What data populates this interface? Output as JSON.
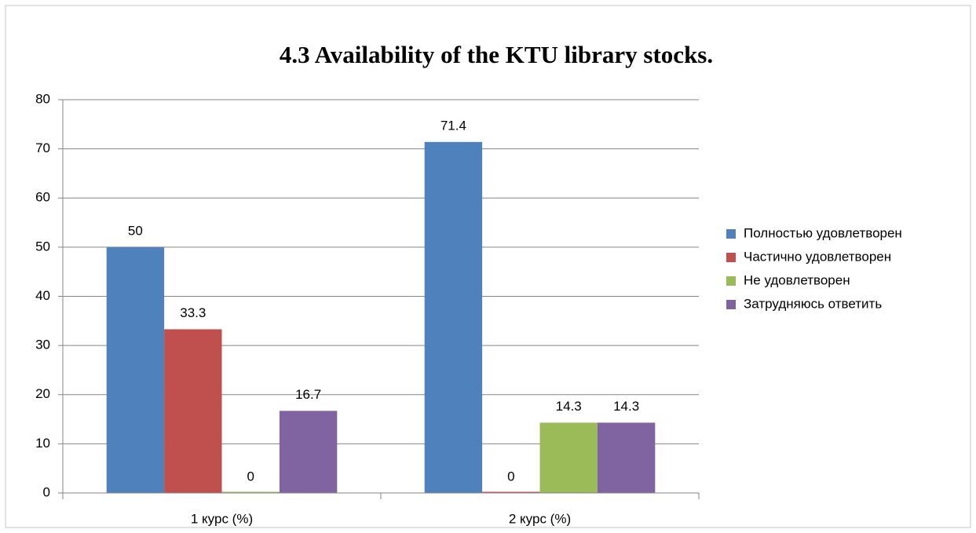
{
  "chart_data": {
    "type": "bar",
    "title": "4.3 Availability of the KTU library stocks.",
    "categories": [
      "1 курс (%)",
      "2 курс (%)"
    ],
    "series": [
      {
        "name": "Полностью удовлетворен",
        "color": "#4f81bd",
        "values": [
          50,
          71.4
        ]
      },
      {
        "name": "Частично удовлетворен",
        "color": "#c0504d",
        "values": [
          33.3,
          0
        ]
      },
      {
        "name": "Не удовлетворен",
        "color": "#9bbb59",
        "values": [
          0,
          14.3
        ]
      },
      {
        "name": "Затрудняюсь ответить",
        "color": "#8064a2",
        "values": [
          16.7,
          14.3
        ]
      }
    ],
    "ylim": [
      0,
      80
    ],
    "yticks": [
      0,
      10,
      20,
      30,
      40,
      50,
      60,
      70,
      80
    ],
    "grid": true,
    "legend": "right"
  }
}
